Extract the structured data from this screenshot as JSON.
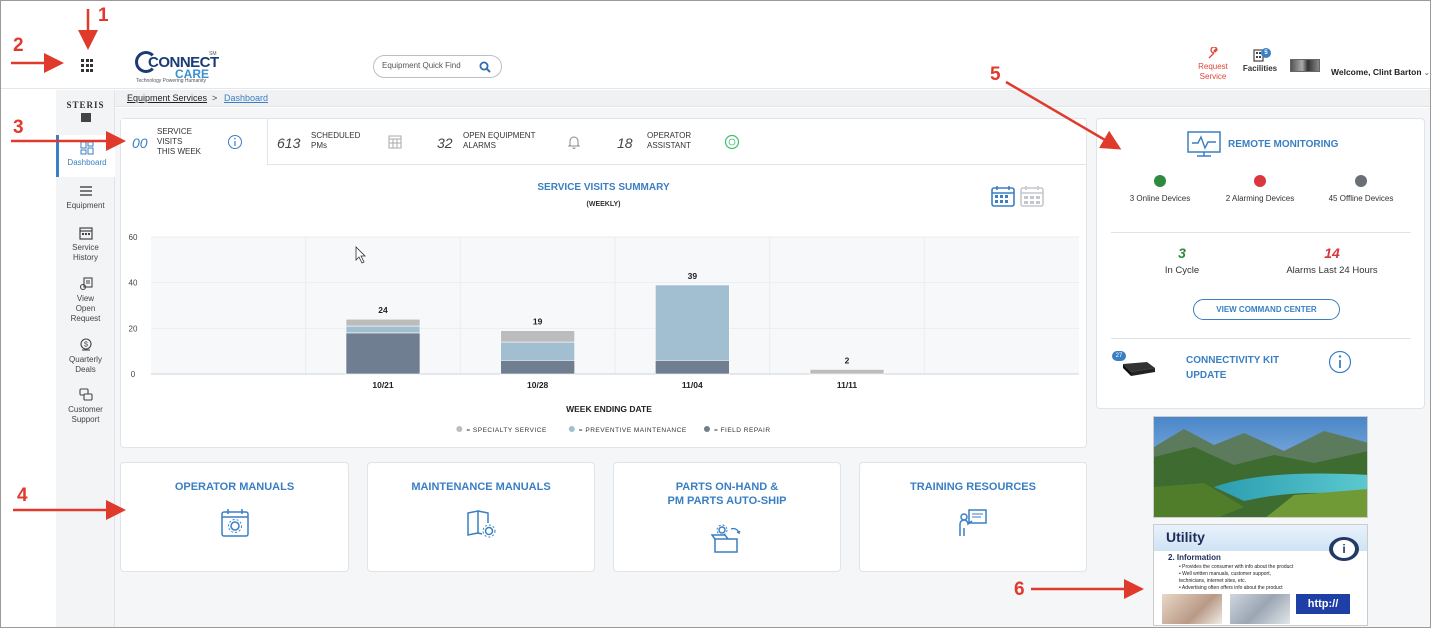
{
  "callouts": [
    "1",
    "2",
    "3",
    "4",
    "5",
    "6"
  ],
  "header": {
    "logo_word1": "CONNECT",
    "logo_word2": "CARE",
    "logo_tagline": "Technology Powering Humanity",
    "logo_sm": "SM",
    "search_placeholder": "Equipment Quick Find",
    "request_service_label": "Request Service",
    "facilities_label": "Facilities",
    "facilities_badge": "5",
    "welcome_text": "Welcome, Clint Barton"
  },
  "brand": {
    "steris": "STERIS"
  },
  "sidebar": {
    "items": [
      {
        "label": "Dashboard",
        "icon": "dashboard-icon",
        "active": true
      },
      {
        "label": "Equipment",
        "icon": "list-icon"
      },
      {
        "label": "Service History",
        "icon": "calendar-icon"
      },
      {
        "label": "View Open Request",
        "icon": "request-icon"
      },
      {
        "label": "Quarterly Deals",
        "icon": "deals-icon"
      },
      {
        "label": "Customer Support",
        "icon": "chat-icon"
      }
    ]
  },
  "breadcrumb": {
    "parent": "Equipment Services",
    "separator": ">",
    "current": "Dashboard"
  },
  "tabs": [
    {
      "num": "00",
      "label_line1": "SERVICE",
      "label_line2": "VISITS",
      "label_line3": "THIS WEEK",
      "icon": "info-icon"
    },
    {
      "num": "613",
      "label_line1": "SCHEDULED",
      "label_line2": "PMs",
      "icon": "calendar-grid-icon"
    },
    {
      "num": "32",
      "label_line1": "OPEN EQUIPMENT",
      "label_line2": "ALARMS",
      "icon": "bell-icon"
    },
    {
      "num": "18",
      "label_line1": "OPERATOR",
      "label_line2": "ASSISTANT",
      "icon": "assistant-badge-icon"
    }
  ],
  "chart_data": {
    "type": "bar",
    "stacked": true,
    "title": "SERVICE VISITS SUMMARY",
    "subtitle": "(WEEKLY)",
    "xlabel": "WEEK ENDING DATE",
    "ylabel": "",
    "ylim": [
      0,
      60
    ],
    "yticks": [
      0,
      20,
      40,
      60
    ],
    "categories": [
      "",
      "10/21",
      "10/28",
      "11/04",
      "11/11",
      ""
    ],
    "totals": [
      null,
      24,
      19,
      39,
      2,
      null
    ],
    "series": [
      {
        "name": "FIELD REPAIR",
        "color": "#6f7e91",
        "values": [
          0,
          18,
          6,
          6,
          0,
          0
        ]
      },
      {
        "name": "PREVENTIVE MAINTENANCE",
        "color": "#a2bfd1",
        "values": [
          0,
          3,
          8,
          33,
          0,
          0
        ]
      },
      {
        "name": "SPECIALTY SERVICE",
        "color": "#bcbcbc",
        "values": [
          0,
          3,
          5,
          0,
          2,
          0
        ]
      }
    ],
    "legend_order": [
      "SPECIALTY SERVICE",
      "PREVENTIVE MAINTENANCE",
      "FIELD REPAIR"
    ],
    "legend_prefix": "=",
    "grid": true,
    "legend_position": "bottom"
  },
  "monitor": {
    "title": "REMOTE MONITORING",
    "devices": [
      {
        "label": "3 Online Devices",
        "color": "#2e8b3e"
      },
      {
        "label": "2 Alarming Devices",
        "color": "#d9363e"
      },
      {
        "label": "45 Offline Devices",
        "color": "#6a6f76"
      }
    ],
    "in_cycle_value": "3",
    "in_cycle_label": "In Cycle",
    "in_cycle_color": "#2e8b3e",
    "alarms_value": "14",
    "alarms_label": "Alarms Last 24 Hours",
    "alarms_color": "#d9363e",
    "command_center_button": "VIEW COMMAND CENTER",
    "kit_badge": "27",
    "kit_title_line1": "CONNECTIVITY KIT",
    "kit_title_line2": "UPDATE"
  },
  "resources": [
    {
      "title_line1": "OPERATOR MANUALS",
      "title_line2": "",
      "icon": "calendar-gear-icon"
    },
    {
      "title_line1": "MAINTENANCE MANUALS",
      "title_line2": "",
      "icon": "book-gear-icon"
    },
    {
      "title_line1": "PARTS ON-HAND &",
      "title_line2": "PM PARTS AUTO-SHIP",
      "icon": "box-gear-icon"
    },
    {
      "title_line1": "TRAINING RESOURCES",
      "title_line2": "",
      "icon": "trainer-board-icon"
    }
  ],
  "ad_utility": {
    "title": "Utility",
    "badge": "i",
    "heading": "2.   Information",
    "lines": [
      "• Provides the consumer with info about the product",
      "• Well written manuals, customer support,",
      "  technicians, internet sites, etc.",
      "• Advertising often offers info about the product"
    ],
    "http": "http://"
  },
  "colors": {
    "accent": "#3a7fc3",
    "alert": "#e03a2c"
  }
}
